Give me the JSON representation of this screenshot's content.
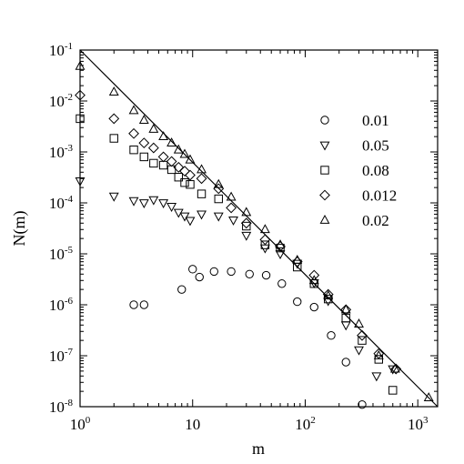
{
  "chart_data": {
    "type": "scatter",
    "xlabel": "m",
    "ylabel": "N(m)",
    "x_scale": "log",
    "y_scale": "log",
    "xlim": [
      1,
      1500
    ],
    "ylim": [
      1e-08,
      0.1
    ],
    "grid": false,
    "legend_position": "right",
    "x_ticks": [
      {
        "base": "10",
        "exp": "0",
        "value": 1
      },
      {
        "base": "10",
        "exp": "",
        "value": 10
      },
      {
        "base": "10",
        "exp": "2",
        "value": 100
      },
      {
        "base": "10",
        "exp": "3",
        "value": 1000
      }
    ],
    "y_ticks": [
      {
        "base": "10",
        "exp": "-1",
        "value": 0.1
      },
      {
        "base": "10",
        "exp": "-2",
        "value": 0.01
      },
      {
        "base": "10",
        "exp": "-3",
        "value": 0.001
      },
      {
        "base": "10",
        "exp": "-4",
        "value": 0.0001
      },
      {
        "base": "10",
        "exp": "-5",
        "value": 1e-05
      },
      {
        "base": "10",
        "exp": "-6",
        "value": 1e-06
      },
      {
        "base": "10",
        "exp": "-7",
        "value": 1e-07
      },
      {
        "base": "10",
        "exp": "-8",
        "value": 1e-08
      }
    ],
    "reference_line": {
      "points": [
        [
          1,
          0.1
        ],
        [
          1500,
          1e-08
        ]
      ]
    },
    "series": [
      {
        "name": "0.01",
        "marker": "circle",
        "points": [
          [
            3,
            1e-06
          ],
          [
            3.7,
            1e-06
          ],
          [
            8,
            2e-06
          ],
          [
            10,
            5e-06
          ],
          [
            11.5,
            3.5e-06
          ],
          [
            15.5,
            4.5e-06
          ],
          [
            22,
            4.5e-06
          ],
          [
            32,
            4e-06
          ],
          [
            45,
            3.8e-06
          ],
          [
            62,
            2.6e-06
          ],
          [
            85,
            1.15e-06
          ],
          [
            120,
            9e-07
          ],
          [
            170,
            2.5e-07
          ],
          [
            230,
            7.5e-08
          ],
          [
            320,
            1.1e-08
          ]
        ]
      },
      {
        "name": "0.05",
        "marker": "triangle-down",
        "points": [
          [
            1,
            0.00027
          ],
          [
            2,
            0.000135
          ],
          [
            3,
            0.00011
          ],
          [
            3.7,
            0.0001
          ],
          [
            4.5,
            0.000115
          ],
          [
            5.5,
            0.0001
          ],
          [
            6.5,
            8.5e-05
          ],
          [
            7.5,
            6.5e-05
          ],
          [
            8.5,
            5.5e-05
          ],
          [
            9.5,
            4.5e-05
          ],
          [
            12,
            6e-05
          ],
          [
            17,
            5.5e-05
          ],
          [
            23,
            4.6e-05
          ],
          [
            30,
            2.3e-05
          ],
          [
            44,
            1.3e-05
          ],
          [
            60,
            1e-05
          ],
          [
            85,
            6.5e-06
          ],
          [
            120,
            2.7e-06
          ],
          [
            160,
            1.2e-06
          ],
          [
            230,
            4e-07
          ],
          [
            300,
            1.3e-07
          ],
          [
            430,
            4e-08
          ],
          [
            600,
            5.5e-08
          ]
        ]
      },
      {
        "name": "0.08",
        "marker": "square",
        "points": [
          [
            1,
            0.0045
          ],
          [
            2,
            0.00185
          ],
          [
            3,
            0.0011
          ],
          [
            3.7,
            0.0008
          ],
          [
            4.5,
            0.0006
          ],
          [
            5.5,
            0.00055
          ],
          [
            6.5,
            0.00045
          ],
          [
            7.5,
            0.00032
          ],
          [
            8.5,
            0.00025
          ],
          [
            9.5,
            0.00023
          ],
          [
            12,
            0.00015
          ],
          [
            17,
            0.00012
          ],
          [
            30,
            3.5e-05
          ],
          [
            44,
            1.5e-05
          ],
          [
            60,
            1.3e-05
          ],
          [
            85,
            5.5e-06
          ],
          [
            120,
            2.6e-06
          ],
          [
            160,
            1.3e-06
          ],
          [
            230,
            5.5e-07
          ],
          [
            320,
            2e-07
          ],
          [
            450,
            8.5e-08
          ],
          [
            600,
            2.1e-08
          ]
        ]
      },
      {
        "name": "0.012",
        "marker": "diamond",
        "points": [
          [
            1,
            0.013
          ],
          [
            2,
            0.0045
          ],
          [
            3,
            0.0023
          ],
          [
            3.7,
            0.0015
          ],
          [
            4.5,
            0.0012
          ],
          [
            5.5,
            0.0008
          ],
          [
            6.5,
            0.00065
          ],
          [
            7.5,
            0.0005
          ],
          [
            8.5,
            0.00042
          ],
          [
            9.5,
            0.00035
          ],
          [
            12,
            0.0003
          ],
          [
            17,
            0.00019
          ],
          [
            22,
            8e-05
          ],
          [
            30,
            4e-05
          ],
          [
            44,
            1.9e-05
          ],
          [
            60,
            1.4e-05
          ],
          [
            85,
            7e-06
          ],
          [
            120,
            3.8e-06
          ],
          [
            160,
            1.6e-06
          ],
          [
            230,
            8e-07
          ],
          [
            320,
            2.5e-07
          ],
          [
            450,
            1.1e-07
          ],
          [
            640,
            5.5e-08
          ]
        ]
      },
      {
        "name": "0.02",
        "marker": "triangle-up",
        "points": [
          [
            1,
            0.048
          ],
          [
            2,
            0.015
          ],
          [
            3,
            0.0065
          ],
          [
            3.7,
            0.0042
          ],
          [
            4.5,
            0.0028
          ],
          [
            5.5,
            0.002
          ],
          [
            6.5,
            0.0015
          ],
          [
            7.5,
            0.0011
          ],
          [
            8.5,
            0.0009
          ],
          [
            9.5,
            0.0007
          ],
          [
            12,
            0.00045
          ],
          [
            17,
            0.00023
          ],
          [
            22,
            0.00013
          ],
          [
            30,
            6.5e-05
          ],
          [
            44,
            3e-05
          ],
          [
            60,
            1.5e-05
          ],
          [
            85,
            7.5e-06
          ],
          [
            120,
            3e-06
          ],
          [
            160,
            1.5e-06
          ],
          [
            230,
            8e-07
          ],
          [
            300,
            4.2e-07
          ],
          [
            450,
            1e-07
          ],
          [
            630,
            5.5e-08
          ],
          [
            1250,
            1.5e-08
          ]
        ]
      }
    ]
  }
}
